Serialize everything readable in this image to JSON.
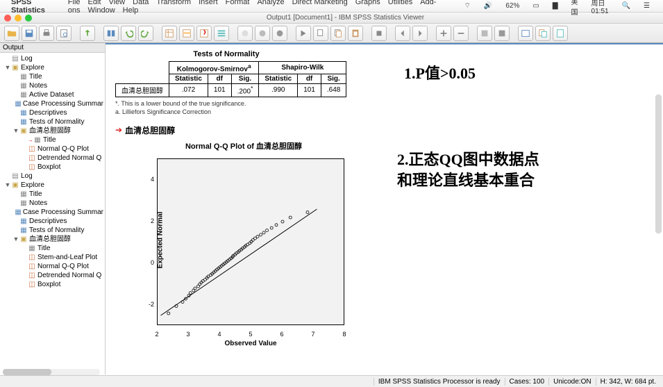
{
  "menubar": {
    "app": "SPSS Statistics",
    "items": [
      "File",
      "Edit",
      "View",
      "Data",
      "Transform",
      "Insert",
      "Format",
      "Analyze",
      "Direct Marketing",
      "Graphs",
      "Utilities",
      "Add-ons",
      "Window",
      "Help"
    ],
    "right": {
      "battery": "62%",
      "locale": "美国",
      "clock": "周日01:51"
    }
  },
  "window": {
    "title": "Output1 [Document1] - IBM SPSS Statistics Viewer"
  },
  "outline": {
    "header": "Output",
    "items": [
      {
        "lv": 1,
        "ic": "log",
        "label": "Log"
      },
      {
        "lv": 1,
        "ic": "book",
        "tog": "▼",
        "label": "Explore"
      },
      {
        "lv": 2,
        "ic": "note",
        "label": "Title"
      },
      {
        "lv": 2,
        "ic": "note",
        "label": "Notes"
      },
      {
        "lv": 2,
        "ic": "note",
        "label": "Active Dataset"
      },
      {
        "lv": 2,
        "ic": "tbl",
        "label": "Case Processing Summar"
      },
      {
        "lv": 2,
        "ic": "tbl",
        "label": "Descriptives"
      },
      {
        "lv": 2,
        "ic": "tbl",
        "label": "Tests of Normality"
      },
      {
        "lv": 2,
        "ic": "book",
        "tog": "▼",
        "label": "血清总胆固醇"
      },
      {
        "lv": 3,
        "ic": "note",
        "tog": "",
        "label": "Title",
        "arrow": "→"
      },
      {
        "lv": 3,
        "ic": "chart",
        "label": "Normal Q-Q Plot"
      },
      {
        "lv": 3,
        "ic": "chart",
        "label": "Detrended Normal Q"
      },
      {
        "lv": 3,
        "ic": "chart",
        "label": "Boxplot"
      },
      {
        "lv": 1,
        "ic": "log",
        "label": "Log"
      },
      {
        "lv": 1,
        "ic": "book",
        "tog": "▼",
        "label": "Explore"
      },
      {
        "lv": 2,
        "ic": "note",
        "label": "Title"
      },
      {
        "lv": 2,
        "ic": "note",
        "label": "Notes"
      },
      {
        "lv": 2,
        "ic": "tbl",
        "label": "Case Processing Summar"
      },
      {
        "lv": 2,
        "ic": "tbl",
        "label": "Descriptives"
      },
      {
        "lv": 2,
        "ic": "tbl",
        "label": "Tests of Normality"
      },
      {
        "lv": 2,
        "ic": "book",
        "tog": "▼",
        "label": "血清总胆固醇"
      },
      {
        "lv": 3,
        "ic": "note",
        "label": "Title"
      },
      {
        "lv": 3,
        "ic": "chart",
        "label": "Stem-and-Leaf Plot"
      },
      {
        "lv": 3,
        "ic": "chart",
        "label": "Normal Q-Q Plot"
      },
      {
        "lv": 3,
        "ic": "chart",
        "label": "Detrended Normal Q"
      },
      {
        "lv": 3,
        "ic": "chart",
        "label": "Boxplot"
      }
    ]
  },
  "table": {
    "title": "Tests of Normality",
    "h1a": "Kolmogorov-Smirnov",
    "h1a_sup": "a",
    "h1b": "Shapiro-Wilk",
    "h2": [
      "Statistic",
      "df",
      "Sig.",
      "Statistic",
      "df",
      "Sig."
    ],
    "rowlabel": "血清总胆固醇",
    "row": [
      ".072",
      "101",
      ".200",
      ".990",
      "101",
      ".648"
    ],
    "sig_sup": "*",
    "foot1": "*. This is a lower bound of the true significance.",
    "foot2": "a. Lilliefors Significance Correction"
  },
  "section": {
    "label": "血清总胆固醇"
  },
  "chart": {
    "type": "scatter",
    "title": "Normal Q-Q Plot of 血清总胆固醇",
    "xlabel": "Observed Value",
    "ylabel": "Expected Normal",
    "xlim": [
      2,
      8
    ],
    "xtick_step": 1,
    "ylim": [
      -3,
      5
    ],
    "yticks": [
      -2,
      0,
      2,
      4
    ],
    "background_color": "#f2f2f2",
    "border_color": "#000000",
    "line_color": "#000000",
    "marker_color": "#000000",
    "marker": "circle-open",
    "marker_size": 4,
    "line": {
      "x1": 2.1,
      "y1": -2.5,
      "x2": 7.1,
      "y2": 2.6
    },
    "points": [
      [
        2.35,
        -2.4
      ],
      [
        2.6,
        -2.05
      ],
      [
        2.8,
        -1.85
      ],
      [
        2.9,
        -1.7
      ],
      [
        3.0,
        -1.55
      ],
      [
        3.05,
        -1.42
      ],
      [
        3.15,
        -1.3
      ],
      [
        3.2,
        -1.2
      ],
      [
        3.3,
        -1.1
      ],
      [
        3.35,
        -1.0
      ],
      [
        3.4,
        -0.92
      ],
      [
        3.45,
        -0.85
      ],
      [
        3.52,
        -0.78
      ],
      [
        3.58,
        -0.7
      ],
      [
        3.62,
        -0.63
      ],
      [
        3.7,
        -0.56
      ],
      [
        3.75,
        -0.5
      ],
      [
        3.8,
        -0.43
      ],
      [
        3.85,
        -0.37
      ],
      [
        3.9,
        -0.3
      ],
      [
        3.95,
        -0.24
      ],
      [
        4.0,
        -0.18
      ],
      [
        4.05,
        -0.12
      ],
      [
        4.1,
        -0.06
      ],
      [
        4.15,
        0.0
      ],
      [
        4.2,
        0.06
      ],
      [
        4.25,
        0.12
      ],
      [
        4.3,
        0.18
      ],
      [
        4.35,
        0.24
      ],
      [
        4.4,
        0.3
      ],
      [
        4.42,
        0.36
      ],
      [
        4.48,
        0.42
      ],
      [
        4.52,
        0.48
      ],
      [
        4.58,
        0.54
      ],
      [
        4.62,
        0.6
      ],
      [
        4.68,
        0.66
      ],
      [
        4.72,
        0.72
      ],
      [
        4.78,
        0.78
      ],
      [
        4.82,
        0.84
      ],
      [
        4.88,
        0.9
      ],
      [
        4.95,
        0.97
      ],
      [
        5.0,
        1.04
      ],
      [
        5.05,
        1.12
      ],
      [
        5.12,
        1.2
      ],
      [
        5.2,
        1.28
      ],
      [
        5.3,
        1.37
      ],
      [
        5.4,
        1.47
      ],
      [
        5.5,
        1.58
      ],
      [
        5.65,
        1.7
      ],
      [
        5.8,
        1.84
      ],
      [
        6.0,
        2.0
      ],
      [
        6.25,
        2.2
      ],
      [
        6.8,
        2.45
      ]
    ]
  },
  "annot": {
    "a1": "1.P值>0.05",
    "a2": "2.正态QQ图中数据点",
    "a3": "和理论直线基本重合"
  },
  "status": {
    "msg": "IBM SPSS Statistics Processor is ready",
    "cases": "Cases: 100",
    "unicode": "Unicode:ON",
    "hw": "H: 342, W: 684 pt."
  }
}
